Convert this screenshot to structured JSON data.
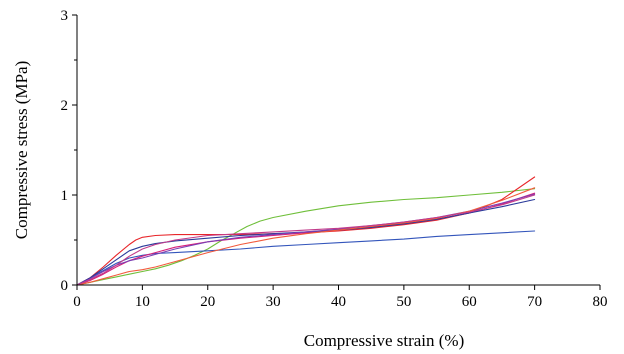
{
  "chart_data": {
    "type": "line",
    "title": "",
    "xlabel": "Compressive strain (%)",
    "ylabel": "Compressive stress (MPa)",
    "xlim": [
      0,
      80
    ],
    "ylim": [
      0,
      3
    ],
    "xticks": [
      "0",
      "10",
      "20",
      "30",
      "40",
      "50",
      "60",
      "70",
      "80"
    ],
    "yticks": [
      "0",
      "1",
      "2",
      "3"
    ],
    "grid": false,
    "legend": "none",
    "series": [
      {
        "color": "#6fbf3a",
        "x": [
          0,
          2,
          4,
          6,
          8,
          10,
          12,
          14,
          16,
          18,
          20,
          22,
          24,
          26,
          28,
          30,
          35,
          40,
          45,
          50,
          55,
          60,
          65,
          70
        ],
        "y": [
          0,
          0.03,
          0.06,
          0.09,
          0.12,
          0.15,
          0.18,
          0.22,
          0.27,
          0.33,
          0.4,
          0.49,
          0.57,
          0.65,
          0.71,
          0.75,
          0.82,
          0.88,
          0.92,
          0.95,
          0.97,
          1.0,
          1.03,
          1.07
        ]
      },
      {
        "color": "#3355bb",
        "x": [
          0,
          2,
          4,
          6,
          8,
          10,
          12,
          15,
          20,
          25,
          30,
          35,
          40,
          45,
          50,
          55,
          60,
          65,
          70
        ],
        "y": [
          0,
          0.08,
          0.16,
          0.24,
          0.3,
          0.33,
          0.35,
          0.36,
          0.38,
          0.4,
          0.43,
          0.45,
          0.47,
          0.49,
          0.51,
          0.54,
          0.56,
          0.58,
          0.6
        ]
      },
      {
        "color": "#e8262a",
        "x": [
          0,
          2,
          4,
          6,
          8,
          9,
          10,
          12,
          15,
          20,
          25,
          30,
          35,
          40,
          45,
          50,
          55,
          60,
          65,
          70
        ],
        "y": [
          0,
          0.08,
          0.2,
          0.33,
          0.45,
          0.5,
          0.53,
          0.55,
          0.56,
          0.56,
          0.56,
          0.57,
          0.58,
          0.6,
          0.63,
          0.67,
          0.72,
          0.8,
          0.95,
          1.2
        ]
      },
      {
        "color": "#d81f7a",
        "x": [
          0,
          2,
          4,
          6,
          8,
          10,
          12,
          15,
          20,
          25,
          30,
          35,
          40,
          45,
          50,
          55,
          60,
          65,
          70
        ],
        "y": [
          0,
          0.05,
          0.12,
          0.2,
          0.27,
          0.32,
          0.36,
          0.42,
          0.48,
          0.52,
          0.55,
          0.58,
          0.61,
          0.64,
          0.68,
          0.73,
          0.8,
          0.9,
          1.02
        ]
      },
      {
        "color": "#2a3a9a",
        "x": [
          0,
          2,
          4,
          6,
          8,
          10,
          12,
          15,
          20,
          25,
          30,
          35,
          40,
          45,
          50,
          55,
          60,
          65,
          70
        ],
        "y": [
          0,
          0.08,
          0.18,
          0.28,
          0.38,
          0.43,
          0.46,
          0.49,
          0.52,
          0.55,
          0.57,
          0.59,
          0.61,
          0.64,
          0.68,
          0.73,
          0.8,
          0.87,
          0.95
        ]
      },
      {
        "color": "#7b3fb3",
        "x": [
          0,
          2,
          4,
          6,
          8,
          10,
          12,
          15,
          20,
          25,
          30,
          35,
          40,
          45,
          50,
          55,
          60,
          65,
          70
        ],
        "y": [
          0,
          0.07,
          0.15,
          0.22,
          0.27,
          0.3,
          0.34,
          0.4,
          0.48,
          0.53,
          0.56,
          0.59,
          0.62,
          0.66,
          0.7,
          0.75,
          0.82,
          0.91,
          1.01
        ]
      },
      {
        "color": "#f25a3c",
        "x": [
          0,
          2,
          4,
          6,
          8,
          10,
          12,
          15,
          20,
          25,
          30,
          35,
          40,
          45,
          50,
          55,
          60,
          65,
          70
        ],
        "y": [
          0,
          0.03,
          0.07,
          0.11,
          0.15,
          0.17,
          0.2,
          0.26,
          0.36,
          0.45,
          0.52,
          0.57,
          0.61,
          0.65,
          0.69,
          0.74,
          0.82,
          0.94,
          1.08
        ]
      },
      {
        "color": "#c23b8a",
        "x": [
          0,
          2,
          4,
          6,
          8,
          10,
          12,
          15,
          20,
          25,
          30,
          35,
          40,
          45,
          50,
          55,
          60,
          65,
          70
        ],
        "y": [
          0,
          0.06,
          0.13,
          0.22,
          0.32,
          0.4,
          0.45,
          0.5,
          0.55,
          0.57,
          0.59,
          0.61,
          0.63,
          0.66,
          0.7,
          0.75,
          0.81,
          0.89,
          1.0
        ]
      }
    ]
  }
}
